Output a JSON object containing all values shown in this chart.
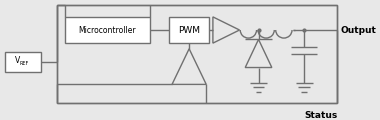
{
  "bg_color": "#e8e8e8",
  "line_color": "#707070",
  "box_fc": "#ffffff",
  "text_color": "#000000",
  "figsize": [
    3.8,
    1.2
  ],
  "dpi": 100,
  "output_label": "Output",
  "status_label": "Status",
  "vref_label": "V",
  "vref_sub": "REF",
  "microcontroller_label": "Microcontroller",
  "pwm_label": "PWM"
}
